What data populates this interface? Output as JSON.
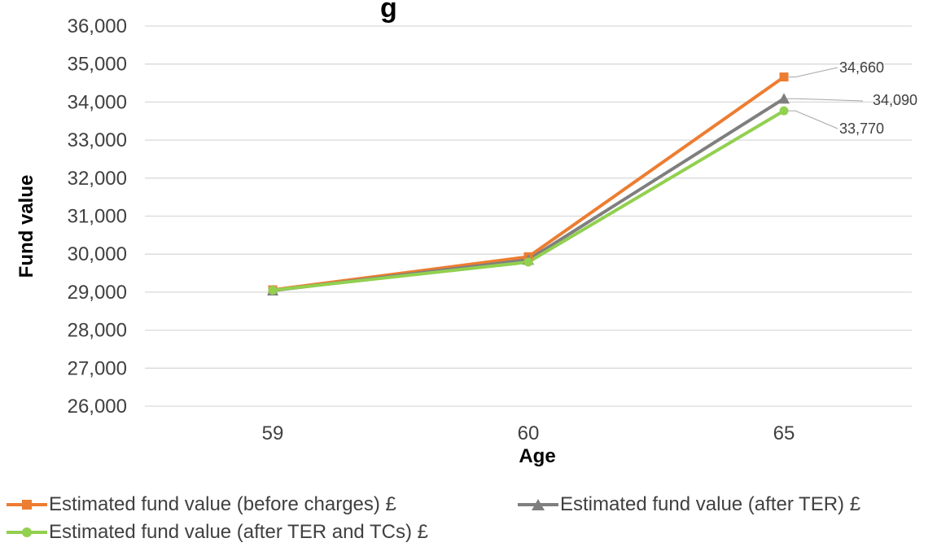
{
  "chart_data": {
    "type": "line",
    "title": "g",
    "xlabel": "Age",
    "ylabel": "Fund value",
    "categories": [
      "59",
      "60",
      "65"
    ],
    "ylim": [
      26000,
      36000
    ],
    "yticks": [
      26000,
      27000,
      28000,
      29000,
      30000,
      31000,
      32000,
      33000,
      34000,
      35000,
      36000
    ],
    "ytick_labels": [
      "26,000",
      "27,000",
      "28,000",
      "29,000",
      "30,000",
      "31,000",
      "32,000",
      "33,000",
      "34,000",
      "35,000",
      "36,000"
    ],
    "grid": true,
    "legend_position": "bottom",
    "series": [
      {
        "name": "Estimated fund value (before charges) £",
        "values": [
          29060,
          29930,
          34660
        ],
        "color": "#ED7D31",
        "marker": "square"
      },
      {
        "name": "Estimated fund value (after TER) £",
        "values": [
          29040,
          29850,
          34090
        ],
        "color": "#7F7F7F",
        "marker": "triangle"
      },
      {
        "name": "Estimated fund value (after TER and TCs) £",
        "values": [
          29050,
          29790,
          33770
        ],
        "color": "#92D050",
        "marker": "circle"
      }
    ],
    "data_labels": [
      "34,660",
      "34,090",
      "33,770"
    ]
  }
}
